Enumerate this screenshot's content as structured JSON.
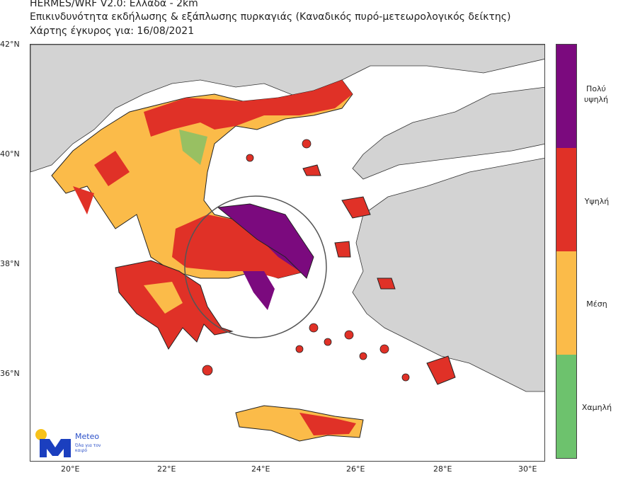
{
  "title": {
    "line1": "HERMES/WRF V2.0: Ελλάδα - 2km",
    "line2": "Επικινδυνότητα εκδήλωσης & εξάπλωσης πυρκαγιάς (Καναδικός πυρό-μετεωρολογικός δείκτης)",
    "line3": "Χάρτης έγκυρος για: 16/08/2021"
  },
  "axes": {
    "lat_ticks": [
      "42°N",
      "40°N",
      "38°N",
      "36°N"
    ],
    "lon_ticks": [
      "20°E",
      "22°E",
      "24°E",
      "26°E",
      "28°E",
      "30°E"
    ]
  },
  "legend": [
    {
      "label": "Πολύ υψηλή",
      "color": "#7b0a7e"
    },
    {
      "label": "Υψηλή",
      "color": "#e03127"
    },
    {
      "label": "Μέση",
      "color": "#fbbb49"
    },
    {
      "label": "Χαμηλή",
      "color": "#6dc26d"
    }
  ],
  "colors": {
    "land_other": "#d3d3d3",
    "sea": "#ffffff"
  },
  "highlight": "circle-around-attica-evia",
  "logo": {
    "name": "Meteo",
    "tagline": "Όλα για τον καιρό"
  }
}
